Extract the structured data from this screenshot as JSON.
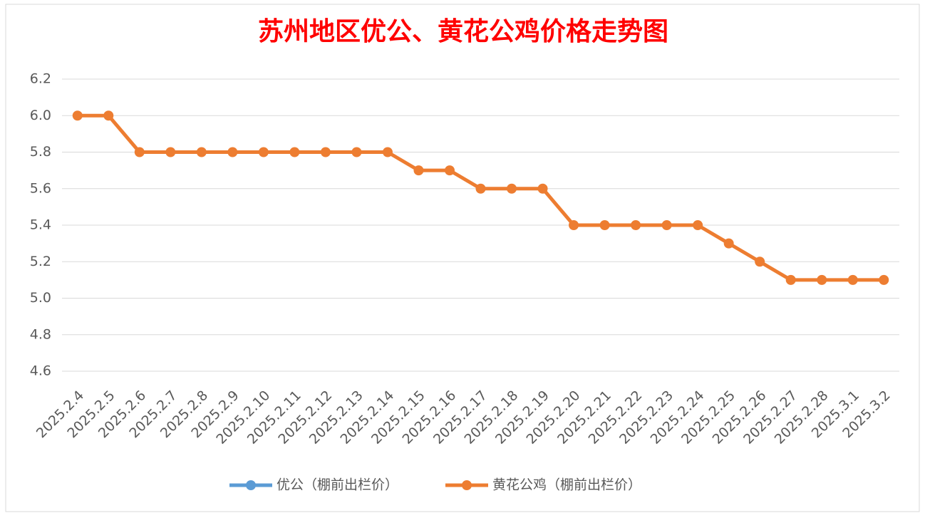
{
  "chart_data": {
    "type": "line",
    "title": "苏州地区优公、黄花公鸡价格走势图",
    "categories": [
      "2025.2.4",
      "2025.2.5",
      "2025.2.6",
      "2025.2.7",
      "2025.2.8",
      "2025.2.9",
      "2025.2.10",
      "2025.2.11",
      "2025.2.12",
      "2025.2.13",
      "2025.2.14",
      "2025.2.15",
      "2025.2.16",
      "2025.2.17",
      "2025.2.18",
      "2025.2.19",
      "2025.2.20",
      "2025.2.21",
      "2025.2.22",
      "2025.2.23",
      "2025.2.24",
      "2025.2.25",
      "2025.2.26",
      "2025.2.27",
      "2025.2.28",
      "2025.3.1",
      "2025.3.2"
    ],
    "series": [
      {
        "name": "优公（棚前出栏价）",
        "color": "#5b9bd5",
        "values": [
          null,
          null,
          null,
          null,
          null,
          null,
          null,
          null,
          null,
          null,
          null,
          null,
          null,
          null,
          null,
          null,
          null,
          null,
          null,
          null,
          null,
          null,
          null,
          null,
          null,
          null,
          null
        ]
      },
      {
        "name": "黄花公鸡（棚前出栏价）",
        "color": "#ed7d31",
        "values": [
          6.0,
          6.0,
          5.8,
          5.8,
          5.8,
          5.8,
          5.8,
          5.8,
          5.8,
          5.8,
          5.8,
          5.7,
          5.7,
          5.6,
          5.6,
          5.6,
          5.4,
          5.4,
          5.4,
          5.4,
          5.4,
          5.3,
          5.2,
          5.1,
          5.1,
          5.1,
          5.1
        ]
      }
    ],
    "ylim": [
      4.6,
      6.2
    ],
    "yticks": [
      4.6,
      4.8,
      {
        "value": 5.0,
        "label": "5.0"
      },
      5.2,
      5.4,
      5.6,
      5.8,
      {
        "value": 6.0,
        "label": "6.0"
      },
      6.2
    ],
    "grid": true,
    "legend": "bottom"
  }
}
